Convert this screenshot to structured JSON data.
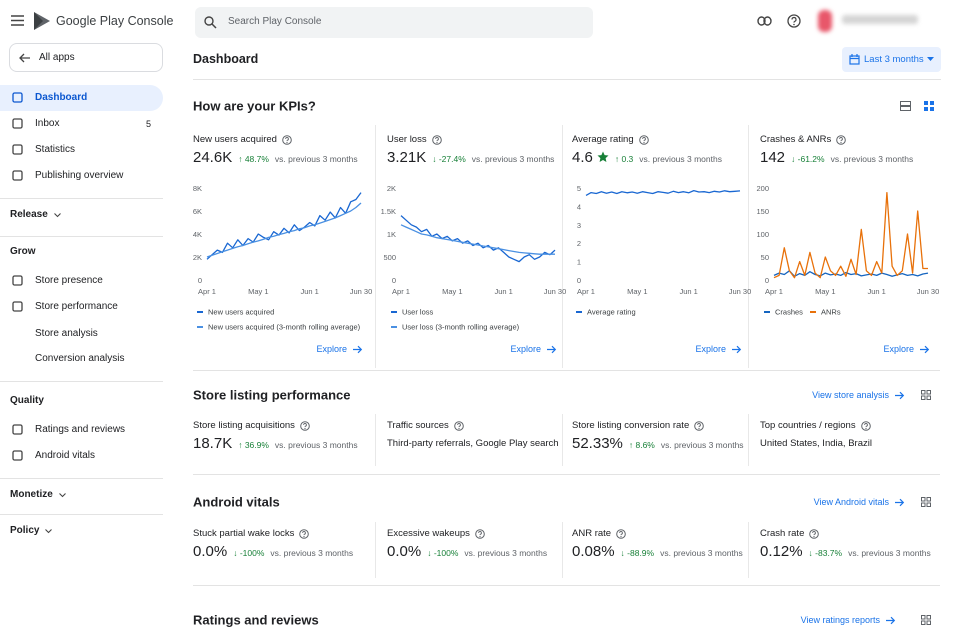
{
  "header": {
    "product": "Google Play Console",
    "search_placeholder": "Search Play Console"
  },
  "sidebar": {
    "back": "All apps",
    "nav": [
      {
        "label": "Dashboard",
        "kind": "item",
        "active": true
      },
      {
        "label": "Inbox",
        "kind": "item",
        "badge": 5
      },
      {
        "label": "Statistics",
        "kind": "item"
      },
      {
        "label": "Publishing overview",
        "kind": "item"
      },
      {
        "label": "Release",
        "kind": "section",
        "collapsed": true
      },
      {
        "label": "Grow",
        "kind": "section"
      },
      {
        "label": "Store presence",
        "kind": "item"
      },
      {
        "label": "Store performance",
        "kind": "item"
      },
      {
        "label": "Store analysis",
        "kind": "sub"
      },
      {
        "label": "Conversion analysis",
        "kind": "sub"
      },
      {
        "label": "Quality",
        "kind": "section"
      },
      {
        "label": "Ratings and reviews",
        "kind": "item"
      },
      {
        "label": "Android vitals",
        "kind": "item"
      },
      {
        "label": "Monetize",
        "kind": "section",
        "collapsed": true
      },
      {
        "label": "Policy",
        "kind": "section",
        "collapsed": true
      }
    ]
  },
  "dashboard": {
    "title": "Dashboard",
    "date_range": "Last 3 months"
  },
  "kpis": {
    "title": "How are your KPIs?",
    "cards": [
      {
        "title": "New users acquired",
        "value": "24.6K",
        "change": "↑ 48.7%",
        "comparison": "vs. previous 3 months",
        "link": "Explore",
        "chart": {
          "type": "line",
          "legend": "stacked",
          "xlim": [
            0,
            30
          ],
          "ylim": [
            0,
            8000
          ],
          "yticks": [
            0,
            {
              "value": 2000,
              "label": "2K"
            },
            {
              "value": 4000,
              "label": "4K"
            },
            {
              "value": 6000,
              "label": "6K"
            },
            {
              "value": 8000,
              "label": "8K"
            }
          ],
          "xticks": [
            {
              "value": 0,
              "label": "Apr 1"
            },
            {
              "value": 10,
              "label": "May 1"
            },
            {
              "value": 20,
              "label": "Jun 1"
            },
            {
              "value": 30,
              "label": "Jun 30"
            }
          ],
          "x": [
            0,
            1,
            2,
            3,
            4,
            5,
            6,
            7,
            8,
            9,
            10,
            11,
            12,
            13,
            14,
            15,
            16,
            17,
            18,
            19,
            20,
            21,
            22,
            23,
            24,
            25,
            26,
            27,
            28,
            29,
            30
          ],
          "series": [
            {
              "name": "New users acquired",
              "color": "#1967d2",
              "values": [
                1800,
                2200,
                2600,
                2400,
                3200,
                2800,
                3500,
                3000,
                3600,
                3300,
                4000,
                3700,
                3500,
                4200,
                3900,
                4500,
                4100,
                4800,
                4300,
                4600,
                5000,
                4700,
                5600,
                5200,
                5900,
                5400,
                6300,
                5800,
                6800,
                7000,
                7600
              ]
            },
            {
              "name": "New users acquired (3-month rolling average)",
              "color": "#4a90e2",
              "values": [
                2000,
                2150,
                2300,
                2450,
                2600,
                2750,
                2900,
                3000,
                3150,
                3300,
                3400,
                3550,
                3700,
                3800,
                3950,
                4050,
                4200,
                4300,
                4450,
                4550,
                4700,
                4800,
                4950,
                5100,
                5250,
                5400,
                5600,
                5800,
                6000,
                6300,
                6700
              ]
            }
          ]
        }
      },
      {
        "title": "User loss",
        "value": "3.21K",
        "change": "↓ -27.4%",
        "comparison": "vs. previous 3 months",
        "link": "Explore",
        "chart": {
          "type": "line",
          "legend": "stacked",
          "xlim": [
            0,
            30
          ],
          "ylim": [
            0,
            2000
          ],
          "yticks": [
            0,
            500,
            {
              "value": 1000,
              "label": "1K"
            },
            {
              "value": 1500,
              "label": "1.5K"
            },
            {
              "value": 2000,
              "label": "2K"
            }
          ],
          "xticks": [
            {
              "value": 0,
              "label": "Apr 1"
            },
            {
              "value": 10,
              "label": "May 1"
            },
            {
              "value": 20,
              "label": "Jun 1"
            },
            {
              "value": 30,
              "label": "Jun 30"
            }
          ],
          "x": [
            0,
            1,
            2,
            3,
            4,
            5,
            6,
            7,
            8,
            9,
            10,
            11,
            12,
            13,
            14,
            15,
            16,
            17,
            18,
            19,
            20,
            21,
            22,
            23,
            24,
            25,
            26,
            27,
            28,
            29,
            30
          ],
          "series": [
            {
              "name": "User loss",
              "color": "#1967d2",
              "values": [
                1400,
                1300,
                1200,
                1150,
                1050,
                1100,
                950,
                1000,
                900,
                950,
                850,
                900,
                800,
                850,
                750,
                800,
                700,
                750,
                650,
                700,
                600,
                500,
                450,
                400,
                500,
                550,
                450,
                500,
                600,
                550,
                650
              ]
            },
            {
              "name": "User loss (3-month rolling average)",
              "color": "#4a90e2",
              "values": [
                1200,
                1150,
                1100,
                1050,
                1000,
                980,
                950,
                920,
                900,
                880,
                860,
                840,
                820,
                800,
                780,
                760,
                740,
                720,
                700,
                680,
                660,
                640,
                620,
                600,
                590,
                580,
                570,
                560,
                560,
                560,
                560
              ]
            }
          ]
        }
      },
      {
        "title": "Average rating",
        "value": "4.6",
        "icon": "star",
        "change": "↑ 0.3",
        "comparison": "vs. previous 3 months",
        "link": "Explore",
        "chart": {
          "type": "line",
          "legend": "stacked",
          "xlim": [
            0,
            30
          ],
          "ylim": [
            0,
            5
          ],
          "yticks": [
            0,
            1,
            2,
            3,
            4,
            5
          ],
          "xticks": [
            {
              "value": 0,
              "label": "Apr 1"
            },
            {
              "value": 10,
              "label": "May 1"
            },
            {
              "value": 20,
              "label": "Jun 1"
            },
            {
              "value": 30,
              "label": "Jun 30"
            }
          ],
          "x": [
            0,
            1,
            2,
            3,
            4,
            5,
            6,
            7,
            8,
            9,
            10,
            11,
            12,
            13,
            14,
            15,
            16,
            17,
            18,
            19,
            20,
            21,
            22,
            23,
            24,
            25,
            26,
            27,
            28,
            29,
            30
          ],
          "series": [
            {
              "name": "Average rating",
              "color": "#1967d2",
              "values": [
                4.6,
                4.75,
                4.7,
                4.8,
                4.72,
                4.78,
                4.7,
                4.8,
                4.74,
                4.78,
                4.72,
                4.8,
                4.75,
                4.7,
                4.8,
                4.76,
                4.72,
                4.82,
                4.75,
                4.8,
                4.74,
                4.86,
                4.78,
                4.8,
                4.75,
                4.82,
                4.78,
                4.85,
                4.8,
                4.82,
                4.84
              ]
            }
          ]
        }
      },
      {
        "title": "Crashes & ANRs",
        "value": "142",
        "change": "↓ -61.2%",
        "comparison": "vs. previous 3 months",
        "link": "Explore",
        "chart": {
          "type": "line",
          "legend": "row",
          "xlim": [
            0,
            30
          ],
          "ylim": [
            0,
            200
          ],
          "yticks": [
            0,
            50,
            100,
            150,
            200
          ],
          "xticks": [
            {
              "value": 0,
              "label": "Apr 1"
            },
            {
              "value": 10,
              "label": "May 1"
            },
            {
              "value": 20,
              "label": "Jun 1"
            },
            {
              "value": 30,
              "label": "Jun 30"
            }
          ],
          "x": [
            0,
            1,
            2,
            3,
            4,
            5,
            6,
            7,
            8,
            9,
            10,
            11,
            12,
            13,
            14,
            15,
            16,
            17,
            18,
            19,
            20,
            21,
            22,
            23,
            24,
            25,
            26,
            27,
            28,
            29,
            30
          ],
          "series": [
            {
              "name": "Crashes",
              "color": "#1565c0",
              "values": [
                10,
                15,
                12,
                20,
                8,
                14,
                10,
                18,
                12,
                9,
                15,
                11,
                13,
                10,
                16,
                12,
                14,
                9,
                11,
                13,
                10,
                15,
                12,
                8,
                11,
                14,
                10,
                12,
                9,
                13,
                15
              ]
            },
            {
              "name": "ANRs",
              "color": "#e8710a",
              "values": [
                5,
                10,
                70,
                20,
                5,
                40,
                10,
                60,
                15,
                5,
                50,
                20,
                10,
                30,
                8,
                45,
                12,
                110,
                20,
                10,
                40,
                15,
                190,
                30,
                10,
                20,
                100,
                15,
                150,
                25,
                25
              ]
            }
          ]
        }
      }
    ]
  },
  "store_listing": {
    "title": "Store listing performance",
    "link": "View store analysis",
    "cards": [
      {
        "title": "Store listing acquisitions",
        "value": "18.7K",
        "change": "↑ 36.9%",
        "comparison": "vs. previous 3 months"
      },
      {
        "title": "Traffic sources",
        "text": "Third-party referrals, Google Play search"
      },
      {
        "title": "Store listing conversion rate",
        "value": "52.33%",
        "change": "↑ 8.6%",
        "comparison": "vs. previous 3 months"
      },
      {
        "title": "Top countries / regions",
        "text": "United States, India, Brazil"
      }
    ]
  },
  "android_vitals": {
    "title": "Android vitals",
    "link": "View Android vitals",
    "cards": [
      {
        "title": "Stuck partial wake locks",
        "value": "0.0%",
        "change": "↓ -100%",
        "comparison": "vs. previous 3 months"
      },
      {
        "title": "Excessive wakeups",
        "value": "0.0%",
        "change": "↓ -100%",
        "comparison": "vs. previous 3 months"
      },
      {
        "title": "ANR rate",
        "value": "0.08%",
        "change": "↓ -88.9%",
        "comparison": "vs. previous 3 months"
      },
      {
        "title": "Crash rate",
        "value": "0.12%",
        "change": "↓ -83.7%",
        "comparison": "vs. previous 3 months"
      }
    ]
  },
  "ratings": {
    "title": "Ratings and reviews",
    "link": "View ratings reports"
  }
}
